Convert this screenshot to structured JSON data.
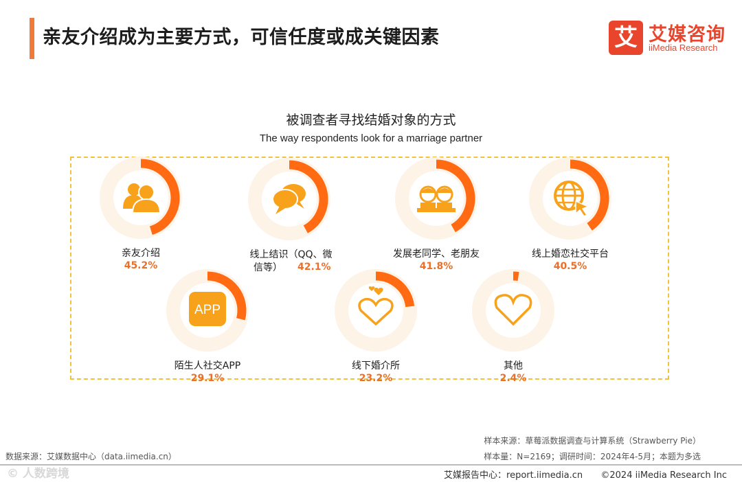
{
  "header": {
    "title": "亲友介绍成为主要方式，可信任度或成关键因素",
    "logo_box": "艾",
    "logo_cn": "艾媒咨询",
    "logo_en": "iiMedia Research"
  },
  "chart_data": {
    "type": "radial-progress",
    "title": "被调查者寻找结婚对象的方式",
    "subtitle": "The way respondents look for a marriage partner",
    "unit": "%",
    "categories": [
      "亲友介绍",
      "线上结识（QQ、微信等）",
      "发展老同学、老朋友",
      "线上婚恋社交平台",
      "陌生人社交APP",
      "线下婚介所",
      "其他"
    ],
    "values": [
      45.2,
      42.1,
      41.8,
      40.5,
      29.1,
      23.2,
      2.4
    ],
    "value_labels": [
      "45.2%",
      "42.1%",
      "41.8%",
      "40.5%",
      "29.1%",
      "23.2%",
      "2.4%"
    ],
    "label_lines": [
      [
        "亲友介绍"
      ],
      [
        "线上结识（QQ、微",
        "信等）"
      ],
      [
        "发展老同学、老朋友"
      ],
      [
        "线上婚恋社交平台"
      ],
      [
        "陌生人社交APP"
      ],
      [
        "线下婚介所"
      ],
      [
        "其他"
      ]
    ],
    "icons": [
      "people-icon",
      "chat-bubbles-icon",
      "classmates-icon",
      "globe-cursor-icon",
      "app-icon",
      "hearts-icon",
      "heart-outline-icon"
    ],
    "app_icon_text": "APP",
    "colors": {
      "arc": "#ff6a13",
      "icon": "#f7a21a",
      "halo": "#fdf3e7",
      "value": "#e8702a",
      "frame": "#f2c23a"
    }
  },
  "footer": {
    "source_left": "数据来源：艾媒数据中心（data.iimedia.cn）",
    "sample_source": "样本来源：草莓派数据调查与计算系统（Strawberry Pie）",
    "sample_info": "样本量：N=2169；调研时间：2024年4-5月；本题为多选",
    "report_center": "艾媒报告中心：report.iimedia.cn",
    "copyright": "©2024  iiMedia Research Inc",
    "watermark": "©  人数跨境"
  }
}
